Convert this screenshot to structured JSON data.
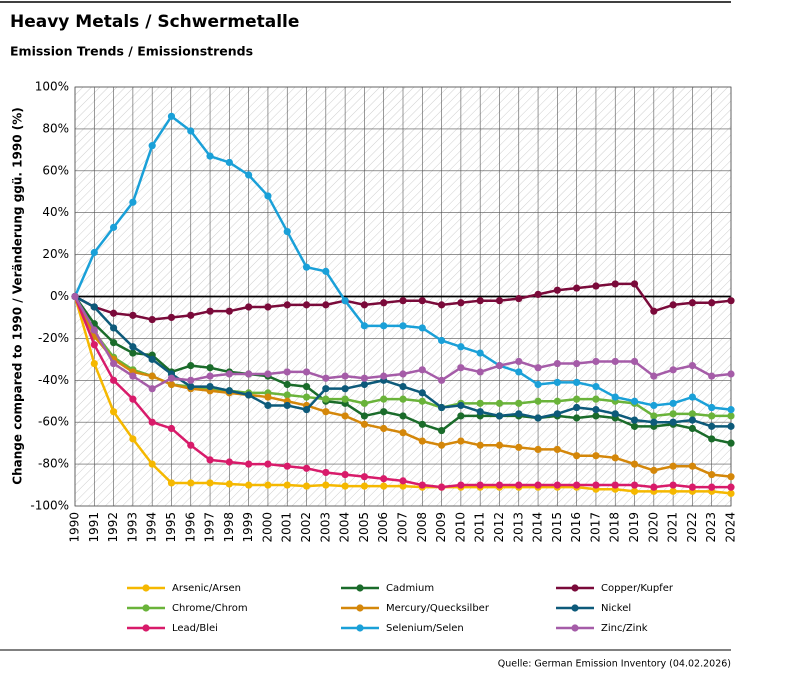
{
  "chart_data": {
    "type": "line",
    "title": "Heavy Metals / Schwermetalle",
    "subtitle": "Emission Trends / Emissionstrends",
    "y_label": "Change compared to 1990 / Veränderung ggü. 1990 (%)",
    "source": "Quelle: German Emission Inventory (04.02.2026)",
    "categories": [
      "1990",
      "1991",
      "1992",
      "1993",
      "1994",
      "1995",
      "1996",
      "1997",
      "1998",
      "1999",
      "2000",
      "2001",
      "2002",
      "2003",
      "2004",
      "2005",
      "2006",
      "2007",
      "2008",
      "2009",
      "2010",
      "2011",
      "2012",
      "2013",
      "2014",
      "2015",
      "2016",
      "2017",
      "2018",
      "2019",
      "2020",
      "2021",
      "2022",
      "2023",
      "2024"
    ],
    "ylim": [
      -100,
      100
    ],
    "yticks": [
      {
        "value": -100,
        "label": "-100%"
      },
      {
        "value": -80,
        "label": "-80%"
      },
      {
        "value": -60,
        "label": "-60%"
      },
      {
        "value": -40,
        "label": "-40%"
      },
      {
        "value": -20,
        "label": "-20%"
      },
      {
        "value": 0,
        "label": "0%"
      },
      {
        "value": 20,
        "label": "20%"
      },
      {
        "value": 40,
        "label": "40%"
      },
      {
        "value": 60,
        "label": "60%"
      },
      {
        "value": 80,
        "label": "80%"
      },
      {
        "value": 100,
        "label": "100%"
      }
    ],
    "grid": true,
    "legend": "bottom",
    "series": [
      {
        "name": "Arsenic/Arsen",
        "color": "#f5b800",
        "values": [
          0,
          -32,
          -55,
          -68,
          -80,
          -89,
          -89,
          -89,
          -89.5,
          -90,
          -90,
          -90,
          -90.5,
          -90,
          -90.5,
          -90.5,
          -90.5,
          -90.5,
          -91,
          -91,
          -91,
          -91,
          -91,
          -91,
          -91,
          -91,
          -91,
          -92,
          -92,
          -93,
          -93,
          -93,
          -93,
          -93,
          -94
        ]
      },
      {
        "name": "Cadmium",
        "color": "#1a6b2a",
        "values": [
          0,
          -13,
          -22,
          -27,
          -28,
          -36,
          -33,
          -34,
          -36,
          -37,
          -38,
          -42,
          -43,
          -50,
          -51,
          -57,
          -55,
          -57,
          -61,
          -64,
          -57,
          -57,
          -57,
          -57,
          -58,
          -57,
          -58,
          -57,
          -58,
          -62,
          -62,
          -61,
          -63,
          -68,
          -70
        ]
      },
      {
        "name": "Copper/Kupfer",
        "color": "#7a0a3a",
        "values": [
          0,
          -5,
          -8,
          -9,
          -11,
          -10,
          -9,
          -7,
          -7,
          -5,
          -5,
          -4,
          -4,
          -4,
          -2,
          -4,
          -3,
          -2,
          -2,
          -4,
          -3,
          -2,
          -2,
          -1,
          1,
          3,
          4,
          5,
          6,
          6,
          -7,
          -4,
          -3,
          -3,
          -2
        ]
      },
      {
        "name": "Chrome/Chrom",
        "color": "#6ab33a",
        "values": [
          0,
          -17,
          -29,
          -35,
          -38,
          -42,
          -43,
          -44,
          -45,
          -46,
          -46,
          -47,
          -48,
          -49,
          -49,
          -51,
          -49,
          -49,
          -50,
          -53,
          -51,
          -51,
          -51,
          -51,
          -50,
          -50,
          -49,
          -49,
          -50,
          -51,
          -57,
          -56,
          -56,
          -57,
          -57
        ]
      },
      {
        "name": "Mercury/Quecksilber",
        "color": "#d4870a",
        "values": [
          0,
          -19,
          -30,
          -36,
          -38,
          -42,
          -44,
          -45,
          -46,
          -47,
          -48,
          -50,
          -52,
          -55,
          -57,
          -61,
          -63,
          -65,
          -69,
          -71,
          -69,
          -71,
          -71,
          -72,
          -73,
          -73,
          -76,
          -76,
          -77,
          -80,
          -83,
          -81,
          -81,
          -85,
          -86
        ]
      },
      {
        "name": "Nickel",
        "color": "#0d5a7a",
        "values": [
          0,
          -5,
          -15,
          -24,
          -30,
          -37,
          -43,
          -43,
          -45,
          -47,
          -52,
          -52,
          -54,
          -44,
          -44,
          -42,
          -40,
          -43,
          -46,
          -53,
          -52,
          -55,
          -57,
          -56,
          -58,
          -56,
          -53,
          -54,
          -56,
          -59,
          -60,
          -60,
          -59,
          -62,
          -62
        ]
      },
      {
        "name": "Lead/Blei",
        "color": "#d81b6a",
        "values": [
          0,
          -23,
          -40,
          -49,
          -60,
          -63,
          -71,
          -78,
          -79,
          -80,
          -80,
          -81,
          -82,
          -84,
          -85,
          -86,
          -87,
          -88,
          -90,
          -91,
          -90,
          -90,
          -90,
          -90,
          -90,
          -90,
          -90,
          -90,
          -90,
          -90,
          -91,
          -90,
          -91,
          -91,
          -91
        ]
      },
      {
        "name": "Selenium/Selen",
        "color": "#1aa0d8",
        "values": [
          0,
          21,
          33,
          45,
          72,
          86,
          79,
          67,
          64,
          58,
          48,
          31,
          14,
          12,
          -2,
          -14,
          -14,
          -14,
          -15,
          -21,
          -24,
          -27,
          -33,
          -36,
          -42,
          -41,
          -41,
          -43,
          -48,
          -50,
          -52,
          -51,
          -48,
          -53,
          -54
        ]
      },
      {
        "name": "Zinc/Zink",
        "color": "#a55ca8",
        "values": [
          0,
          -16,
          -32,
          -38,
          -44,
          -39,
          -40,
          -38,
          -37,
          -37,
          -37,
          -36,
          -36,
          -39,
          -38,
          -39,
          -38,
          -37,
          -35,
          -40,
          -34,
          -36,
          -33,
          -31,
          -34,
          -32,
          -32,
          -31,
          -31,
          -31,
          -38,
          -35,
          -33,
          -38,
          -37
        ]
      }
    ]
  }
}
